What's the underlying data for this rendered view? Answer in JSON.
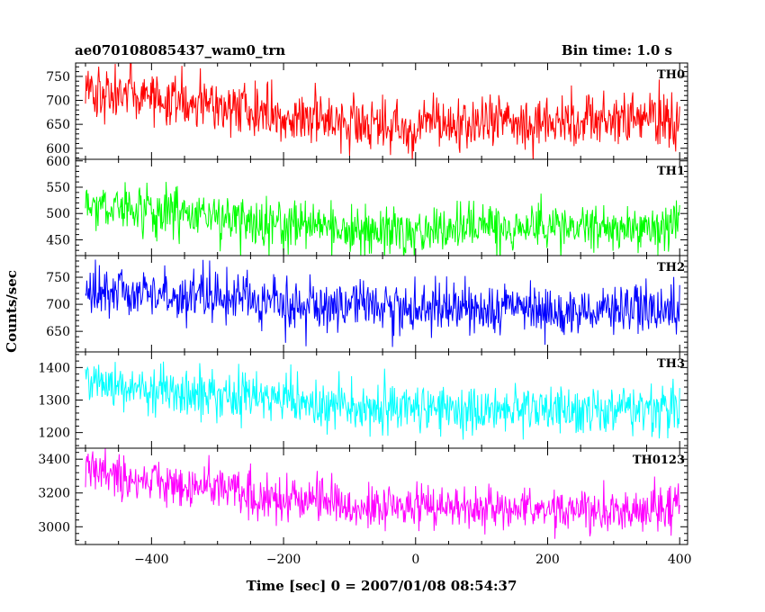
{
  "header": {
    "title": "ae070108085437_wam0_trn",
    "bin_time": "Bin time: 1.0 s"
  },
  "chart_data": {
    "type": "line",
    "xlabel": "Time [sec] 0 = 2007/01/08 08:54:37",
    "ylabel": "Counts/sec",
    "xlim": [
      -515,
      412
    ],
    "x_ticks": [
      -400,
      -200,
      0,
      200,
      400
    ],
    "x_tick_labels": [
      "−400",
      "−200",
      "0",
      "200",
      "400"
    ],
    "data_x_range": [
      -500,
      400
    ],
    "bin_time_s": 1.0,
    "grid": false,
    "panels": [
      {
        "name": "TH0",
        "color": "#ff0000",
        "ylim": [
          577,
          778
        ],
        "y_ticks": [
          600,
          650,
          700,
          750
        ],
        "trend": [
          [
            -500,
            715
          ],
          [
            -300,
            688
          ],
          [
            -200,
            665
          ],
          [
            0,
            648
          ],
          [
            200,
            655
          ],
          [
            400,
            662
          ]
        ],
        "noise_sd": 28
      },
      {
        "name": "TH1",
        "color": "#00ff00",
        "ylim": [
          420,
          603
        ],
        "y_ticks": [
          450,
          500,
          550,
          600
        ],
        "trend": [
          [
            -500,
            515
          ],
          [
            -300,
            492
          ],
          [
            -200,
            478
          ],
          [
            0,
            470
          ],
          [
            200,
            475
          ],
          [
            400,
            478
          ]
        ],
        "noise_sd": 24
      },
      {
        "name": "TH2",
        "color": "#0000ff",
        "ylim": [
          612,
          790
        ],
        "y_ticks": [
          650,
          700,
          750
        ],
        "trend": [
          [
            -500,
            728
          ],
          [
            -300,
            712
          ],
          [
            -200,
            702
          ],
          [
            0,
            692
          ],
          [
            200,
            690
          ],
          [
            400,
            690
          ]
        ],
        "noise_sd": 24
      },
      {
        "name": "TH3",
        "color": "#00ffff",
        "ylim": [
          1152,
          1448
        ],
        "y_ticks": [
          1200,
          1300,
          1400
        ],
        "trend": [
          [
            -500,
            1345
          ],
          [
            -300,
            1318
          ],
          [
            -200,
            1290
          ],
          [
            0,
            1272
          ],
          [
            200,
            1270
          ],
          [
            400,
            1268
          ]
        ],
        "noise_sd": 38
      },
      {
        "name": "TH0123",
        "color": "#ff00ff",
        "ylim": [
          2895,
          3465
        ],
        "y_ticks": [
          3000,
          3200,
          3400
        ],
        "trend": [
          [
            -500,
            3320
          ],
          [
            -300,
            3240
          ],
          [
            -200,
            3160
          ],
          [
            0,
            3100
          ],
          [
            200,
            3100
          ],
          [
            400,
            3100
          ]
        ],
        "noise_sd": 65
      }
    ]
  }
}
